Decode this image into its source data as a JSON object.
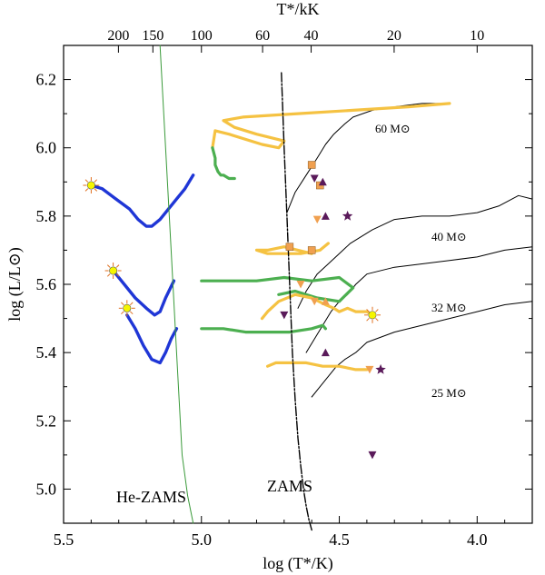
{
  "chart_data": {
    "type": "scatter",
    "title": "",
    "xlabel": "log (T*/K)",
    "ylabel": "log (L/L⊙)",
    "top_axis_label": "T*/kK",
    "xlim": [
      5.5,
      3.8
    ],
    "ylim": [
      4.9,
      6.3
    ],
    "x_ticks": [
      5.5,
      5.0,
      4.5,
      4.0
    ],
    "x_tick_labels": [
      "5.5",
      "5.0",
      "4.5",
      "4.0"
    ],
    "y_ticks": [
      5.0,
      5.2,
      5.4,
      5.6,
      5.8,
      6.0,
      6.2
    ],
    "y_tick_labels": [
      "5.0",
      "5.2",
      "5.4",
      "5.6",
      "5.8",
      "6.0",
      "6.2"
    ],
    "top_ticks_kK": [
      200,
      150,
      100,
      60,
      40,
      20,
      10
    ],
    "top_tick_labels": [
      "200",
      "150",
      "100",
      "60",
      "40",
      "20",
      "10"
    ],
    "grid": false,
    "legend": "none",
    "colors": {
      "hydrogen_rich_track": "#f5c242",
      "he_burning_track": "#4caf50",
      "stripped_track": "#1f36d6",
      "hrd_track": "#000000",
      "he_zams": "#3a9a3a",
      "marker_orange": "#f0a050",
      "marker_purple": "#5a1a5a",
      "marker_star": "#f5f500"
    },
    "annotations": {
      "m60": "60 M⊙",
      "m40": "40 M⊙",
      "m32": "32 M⊙",
      "m25": "25 M⊙",
      "zams": "ZAMS",
      "he_zams": "He-ZAMS"
    },
    "series": [
      {
        "style": "black-track-60",
        "x": [
          4.69,
          4.66,
          4.62,
          4.58,
          4.55,
          4.52,
          4.48,
          4.45,
          4.38,
          4.3,
          4.2,
          4.1
        ],
        "y": [
          5.81,
          5.87,
          5.92,
          5.97,
          6.01,
          6.04,
          6.07,
          6.09,
          6.11,
          6.12,
          6.13,
          6.13
        ]
      },
      {
        "style": "black-track-40",
        "x": [
          4.65,
          4.62,
          4.58,
          4.54,
          4.5,
          4.46,
          4.42,
          4.38,
          4.3,
          4.2,
          4.1,
          4.0,
          3.92,
          3.85,
          3.8
        ],
        "y": [
          5.53,
          5.58,
          5.63,
          5.66,
          5.69,
          5.72,
          5.74,
          5.76,
          5.79,
          5.8,
          5.8,
          5.81,
          5.83,
          5.86,
          5.85
        ]
      },
      {
        "style": "black-track-32",
        "x": [
          4.62,
          4.59,
          4.56,
          4.53,
          4.5,
          4.47,
          4.44,
          4.4,
          4.3,
          4.2,
          4.1,
          4.0,
          3.9,
          3.8
        ],
        "y": [
          5.4,
          5.44,
          5.48,
          5.52,
          5.55,
          5.57,
          5.6,
          5.63,
          5.65,
          5.66,
          5.67,
          5.68,
          5.7,
          5.71
        ]
      },
      {
        "style": "black-track-25",
        "x": [
          4.6,
          4.57,
          4.54,
          4.51,
          4.48,
          4.44,
          4.4,
          4.3,
          4.2,
          4.1,
          4.0,
          3.9,
          3.8
        ],
        "y": [
          5.27,
          5.3,
          5.33,
          5.36,
          5.38,
          5.4,
          5.43,
          5.46,
          5.48,
          5.5,
          5.52,
          5.54,
          5.55
        ]
      },
      {
        "style": "yellow-60",
        "x": [
          4.1,
          4.25,
          4.45,
          4.65,
          4.85,
          4.92,
          4.88,
          4.8,
          4.7,
          4.72,
          4.78,
          4.9,
          4.95,
          4.96
        ],
        "y": [
          6.13,
          6.12,
          6.11,
          6.1,
          6.09,
          6.08,
          6.06,
          6.04,
          6.02,
          6.0,
          6.01,
          6.04,
          6.05,
          6.0
        ]
      },
      {
        "style": "green-60",
        "x": [
          4.96,
          4.95,
          4.95,
          4.94,
          4.93,
          4.92,
          4.9,
          4.88
        ],
        "y": [
          6.0,
          5.97,
          5.95,
          5.93,
          5.92,
          5.92,
          5.91,
          5.91
        ]
      },
      {
        "style": "yellow-40",
        "x": [
          4.6,
          4.65,
          4.7,
          4.76,
          4.8,
          4.76,
          4.7,
          4.64,
          4.57,
          4.54
        ],
        "y": [
          5.69,
          5.7,
          5.71,
          5.7,
          5.7,
          5.69,
          5.69,
          5.69,
          5.7,
          5.72
        ]
      },
      {
        "style": "green-40",
        "x": [
          5.0,
          4.9,
          4.8,
          4.7,
          4.6,
          4.5,
          4.45,
          4.5,
          4.58,
          4.66,
          4.72
        ],
        "y": [
          5.61,
          5.61,
          5.61,
          5.62,
          5.61,
          5.62,
          5.59,
          5.55,
          5.56,
          5.58,
          5.57
        ]
      },
      {
        "style": "yellow-32",
        "x": [
          4.78,
          4.76,
          4.72,
          4.66,
          4.6,
          4.55,
          4.52,
          4.5,
          4.47,
          4.44,
          4.4,
          4.38
        ],
        "y": [
          5.5,
          5.52,
          5.55,
          5.57,
          5.56,
          5.54,
          5.53,
          5.52,
          5.53,
          5.52,
          5.52,
          5.51
        ]
      },
      {
        "style": "green-32",
        "x": [
          5.0,
          4.92,
          4.84,
          4.76,
          4.68,
          4.6,
          4.56,
          4.55
        ],
        "y": [
          5.47,
          5.47,
          5.46,
          5.46,
          5.46,
          5.47,
          5.48,
          5.47
        ]
      },
      {
        "style": "yellow-25",
        "x": [
          4.76,
          4.73,
          4.68,
          4.62,
          4.56,
          4.5,
          4.44,
          4.4
        ],
        "y": [
          5.36,
          5.37,
          5.37,
          5.37,
          5.36,
          5.36,
          5.35,
          5.35
        ]
      },
      {
        "style": "blue-60",
        "x": [
          5.4,
          5.36,
          5.31,
          5.26,
          5.23,
          5.2,
          5.18,
          5.15,
          5.12,
          5.09,
          5.06,
          5.03
        ],
        "y": [
          5.89,
          5.88,
          5.85,
          5.82,
          5.79,
          5.77,
          5.77,
          5.79,
          5.82,
          5.85,
          5.88,
          5.92
        ]
      },
      {
        "style": "blue-40",
        "x": [
          5.32,
          5.28,
          5.24,
          5.2,
          5.17,
          5.15,
          5.13,
          5.1
        ],
        "y": [
          5.64,
          5.6,
          5.56,
          5.53,
          5.51,
          5.52,
          5.56,
          5.61
        ]
      },
      {
        "style": "blue-32",
        "x": [
          5.27,
          5.24,
          5.21,
          5.18,
          5.15,
          5.13,
          5.11,
          5.09
        ],
        "y": [
          5.51,
          5.47,
          5.42,
          5.38,
          5.37,
          5.4,
          5.44,
          5.47
        ]
      },
      {
        "style": "zams",
        "x": [
          4.71,
          4.7,
          4.69,
          4.68,
          4.67,
          4.66,
          4.65,
          4.64,
          4.63,
          4.62,
          4.61,
          4.6
        ],
        "y": [
          6.22,
          6.0,
          5.8,
          5.6,
          5.4,
          5.26,
          5.15,
          5.07,
          5.0,
          4.95,
          4.91,
          4.88
        ]
      },
      {
        "style": "he-zams",
        "x": [
          5.15,
          5.13,
          5.11,
          5.09,
          5.07,
          5.05,
          5.03
        ],
        "y": [
          6.3,
          6.0,
          5.7,
          5.4,
          5.1,
          4.98,
          4.9
        ]
      }
    ],
    "points": [
      {
        "shape": "square",
        "color": "orange",
        "x": 4.6,
        "y": 5.95
      },
      {
        "shape": "square",
        "color": "orange",
        "x": 4.57,
        "y": 5.89
      },
      {
        "shape": "triangle-down",
        "color": "purple",
        "x": 4.59,
        "y": 5.91
      },
      {
        "shape": "triangle-up",
        "color": "purple",
        "x": 4.56,
        "y": 5.9
      },
      {
        "shape": "triangle-down",
        "color": "orange",
        "x": 4.58,
        "y": 5.79
      },
      {
        "shape": "triangle-up",
        "color": "purple",
        "x": 4.55,
        "y": 5.8
      },
      {
        "shape": "star",
        "color": "purple",
        "x": 4.47,
        "y": 5.8
      },
      {
        "shape": "square",
        "color": "orange",
        "x": 4.68,
        "y": 5.71
      },
      {
        "shape": "square",
        "color": "orange",
        "x": 4.6,
        "y": 5.7
      },
      {
        "shape": "triangle-down",
        "color": "orange",
        "x": 4.64,
        "y": 5.6
      },
      {
        "shape": "triangle-down",
        "color": "orange",
        "x": 4.59,
        "y": 5.55
      },
      {
        "shape": "triangle-up",
        "color": "orange",
        "x": 4.55,
        "y": 5.55
      },
      {
        "shape": "triangle-down",
        "color": "purple",
        "x": 4.7,
        "y": 5.51
      },
      {
        "shape": "triangle-up",
        "color": "purple",
        "x": 4.55,
        "y": 5.4
      },
      {
        "shape": "triangle-down",
        "color": "orange",
        "x": 4.39,
        "y": 5.35
      },
      {
        "shape": "star",
        "color": "purple",
        "x": 4.35,
        "y": 5.35
      },
      {
        "shape": "triangle-down",
        "color": "purple",
        "x": 4.38,
        "y": 5.1
      },
      {
        "shape": "sun",
        "color": "yellow",
        "x": 5.4,
        "y": 5.89
      },
      {
        "shape": "sun",
        "color": "yellow",
        "x": 5.32,
        "y": 5.64
      },
      {
        "shape": "sun",
        "color": "yellow",
        "x": 5.27,
        "y": 5.53
      },
      {
        "shape": "sun",
        "color": "yellow",
        "x": 4.38,
        "y": 5.51
      }
    ]
  }
}
